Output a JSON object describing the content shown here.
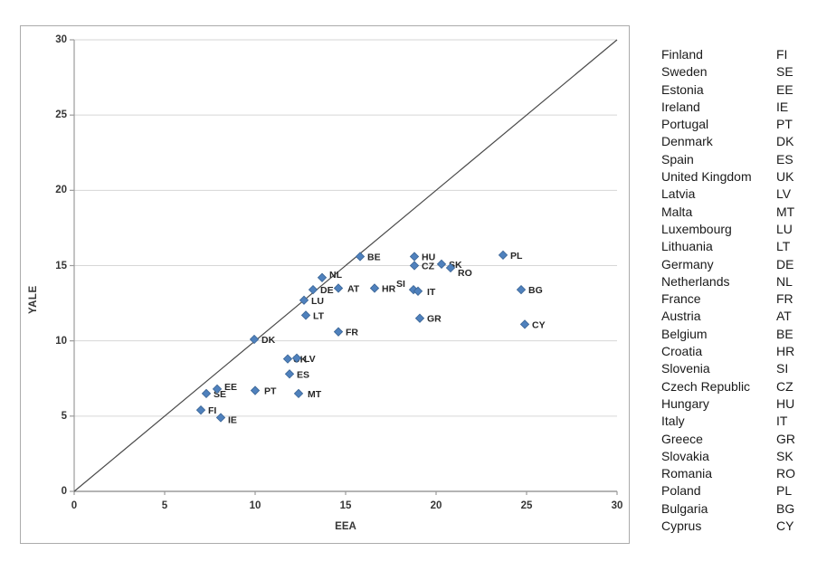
{
  "colors": {
    "marker_fill": "#4F81BD",
    "marker_stroke": "#3A6494",
    "gridline": "#D6D6D6",
    "axis_line": "#9B9B9B",
    "identity_line": "#4A4A4A",
    "data_label_text": "#262626",
    "tick_text": "#363636",
    "frame_border": "#ABABAB"
  },
  "chart_data": {
    "type": "scatter",
    "title": "",
    "xlabel": "EEA",
    "ylabel": "YALE",
    "xlim": [
      0,
      30
    ],
    "ylim": [
      0,
      30
    ],
    "x_ticks": [
      0,
      5,
      10,
      15,
      20,
      25,
      30
    ],
    "y_ticks": [
      0,
      5,
      10,
      15,
      20,
      25,
      30
    ],
    "grid": "horizontal-only",
    "legend_position": "right-table",
    "identity_line": {
      "from": [
        0,
        0
      ],
      "to": [
        30,
        30
      ]
    },
    "marker": "diamond",
    "points": [
      {
        "code": "FI",
        "x": 7.0,
        "y": 5.4
      },
      {
        "code": "SE",
        "x": 7.3,
        "y": 6.5
      },
      {
        "code": "EE",
        "x": 7.9,
        "y": 6.8,
        "ldy": 1
      },
      {
        "code": "IE",
        "x": 8.1,
        "y": 4.9,
        "ldy": 6
      },
      {
        "code": "PT",
        "x": 10.0,
        "y": 6.7,
        "ldx": 10
      },
      {
        "code": "DK",
        "x": 9.95,
        "y": 10.1
      },
      {
        "code": "ES",
        "x": 11.9,
        "y": 7.8
      },
      {
        "code": "UK",
        "x": 11.8,
        "y": 8.8,
        "ldx": 6
      },
      {
        "code": "LV",
        "x": 12.3,
        "y": 8.85
      },
      {
        "code": "MT",
        "x": 12.4,
        "y": 6.5,
        "ldx": 10
      },
      {
        "code": "LU",
        "x": 12.7,
        "y": 12.7
      },
      {
        "code": "LT",
        "x": 12.8,
        "y": 11.7
      },
      {
        "code": "DE",
        "x": 13.2,
        "y": 13.4
      },
      {
        "code": "NL",
        "x": 13.7,
        "y": 14.2,
        "ldy": 0
      },
      {
        "code": "FR",
        "x": 14.6,
        "y": 10.6
      },
      {
        "code": "AT",
        "x": 14.6,
        "y": 13.5,
        "ldx": 10
      },
      {
        "code": "BE",
        "x": 15.8,
        "y": 15.6
      },
      {
        "code": "HR",
        "x": 16.6,
        "y": 13.5
      },
      {
        "code": "SI",
        "x": 18.75,
        "y": 13.4,
        "ldx": -19,
        "ldy": -3
      },
      {
        "code": "CZ",
        "x": 18.8,
        "y": 15.0
      },
      {
        "code": "HU",
        "x": 18.8,
        "y": 15.6
      },
      {
        "code": "IT",
        "x": 19.0,
        "y": 13.3,
        "ldx": 10
      },
      {
        "code": "GR",
        "x": 19.1,
        "y": 11.5
      },
      {
        "code": "SK",
        "x": 20.3,
        "y": 15.1
      },
      {
        "code": "RO",
        "x": 20.8,
        "y": 14.85,
        "ldy": 9
      },
      {
        "code": "PL",
        "x": 23.7,
        "y": 15.7
      },
      {
        "code": "BG",
        "x": 24.7,
        "y": 13.4
      },
      {
        "code": "CY",
        "x": 24.9,
        "y": 11.1
      }
    ]
  },
  "legend": {
    "entries": [
      {
        "name": "Finland",
        "code": "FI"
      },
      {
        "name": "Sweden",
        "code": "SE"
      },
      {
        "name": "Estonia",
        "code": "EE"
      },
      {
        "name": "Ireland",
        "code": "IE"
      },
      {
        "name": "Portugal",
        "code": "PT"
      },
      {
        "name": "Denmark",
        "code": "DK"
      },
      {
        "name": "Spain",
        "code": "ES"
      },
      {
        "name": "United Kingdom",
        "code": "UK"
      },
      {
        "name": "Latvia",
        "code": "LV"
      },
      {
        "name": "Malta",
        "code": "MT"
      },
      {
        "name": "Luxembourg",
        "code": "LU"
      },
      {
        "name": "Lithuania",
        "code": "LT"
      },
      {
        "name": "Germany",
        "code": "DE"
      },
      {
        "name": "Netherlands",
        "code": "NL"
      },
      {
        "name": "France",
        "code": "FR"
      },
      {
        "name": "Austria",
        "code": "AT"
      },
      {
        "name": "Belgium",
        "code": "BE"
      },
      {
        "name": "Croatia",
        "code": "HR"
      },
      {
        "name": "Slovenia",
        "code": "SI"
      },
      {
        "name": "Czech Republic",
        "code": "CZ"
      },
      {
        "name": "Hungary",
        "code": "HU"
      },
      {
        "name": "Italy",
        "code": "IT"
      },
      {
        "name": "Greece",
        "code": "GR"
      },
      {
        "name": "Slovakia",
        "code": "SK"
      },
      {
        "name": "Romania",
        "code": "RO"
      },
      {
        "name": "Poland",
        "code": "PL"
      },
      {
        "name": "Bulgaria",
        "code": "BG"
      },
      {
        "name": "Cyprus",
        "code": "CY"
      }
    ]
  }
}
